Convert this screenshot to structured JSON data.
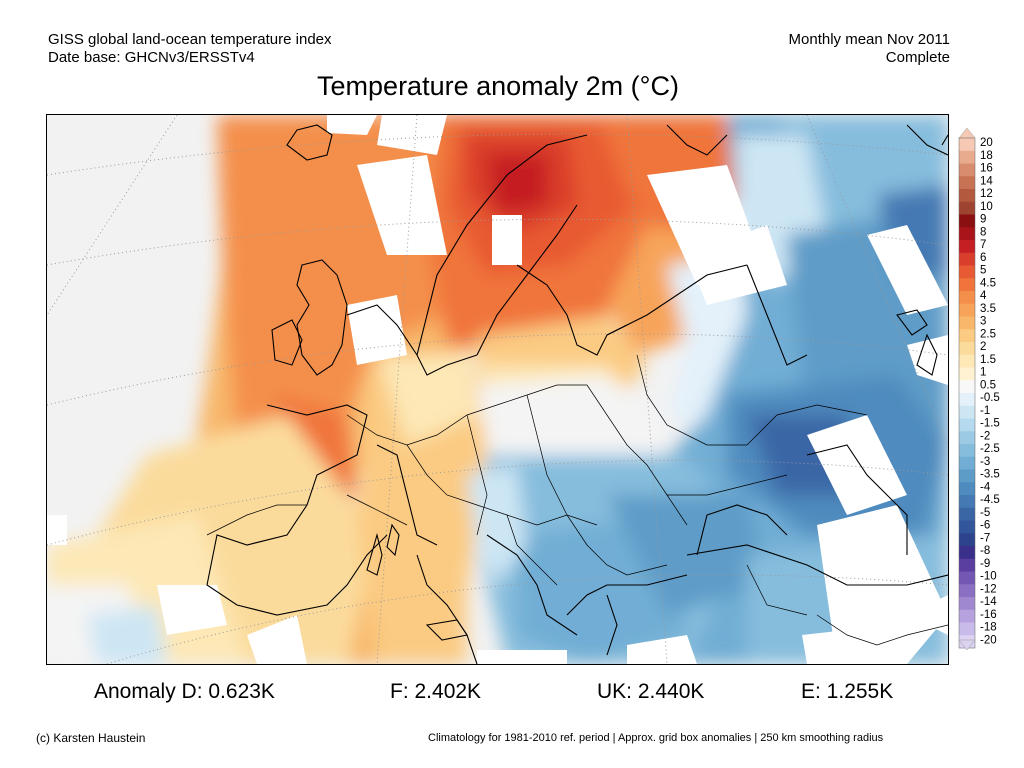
{
  "header": {
    "line1_left": "GISS global land-ocean temperature index",
    "line2_left": "Date base: GHCNv3/ERSSTv4",
    "line1_right": "Monthly mean Nov 2011",
    "line2_right": "Complete"
  },
  "title": "Temperature anomaly 2m (°C)",
  "map": {
    "region": "Europe",
    "no_data_color": "#ffffff",
    "background_color": "#f2f2f2",
    "coastline_color": "#000000"
  },
  "colorbar": {
    "labels": [
      "20",
      "18",
      "16",
      "14",
      "12",
      "10",
      "9",
      "8",
      "7",
      "6",
      "5",
      "4.5",
      "4",
      "3.5",
      "3",
      "2.5",
      "2",
      "1.5",
      "1",
      "0.5",
      "-0.5",
      "-1",
      "-1.5",
      "-2",
      "-2.5",
      "-3",
      "-3.5",
      "-4",
      "-4.5",
      "-5",
      "-6",
      "-7",
      "-8",
      "-9",
      "-10",
      "-12",
      "-14",
      "-16",
      "-18",
      "-20"
    ],
    "colors": [
      "#f5c9b4",
      "#e8ab8e",
      "#d88e6e",
      "#c77252",
      "#b35a3e",
      "#9e4330",
      "#8a0f10",
      "#a8141a",
      "#c51f23",
      "#d93d2b",
      "#e85a33",
      "#f0743b",
      "#f48f4b",
      "#f7a45a",
      "#f8b76a",
      "#fbcb83",
      "#fbdb9c",
      "#fde8b6",
      "#fff2d2",
      "#f8f8f8",
      "#e4f1fa",
      "#cde6f4",
      "#b5d9ee",
      "#9ccae5",
      "#86bddd",
      "#71add4",
      "#5e9cc8",
      "#4f8bbe",
      "#4479b3",
      "#3a66a6",
      "#33559a",
      "#2d448d",
      "#3a2f8a",
      "#5b3fa0",
      "#7357b2",
      "#8a6fc2",
      "#a088d0",
      "#b6a2de",
      "#c9bbe9",
      "#dcd3f3"
    ]
  },
  "stats": {
    "d": "Anomaly D: 0.623K",
    "f": "F: 2.402K",
    "uk": "UK: 2.440K",
    "e": "E: 1.255K"
  },
  "footer": {
    "left": "(c) Karsten Haustein",
    "right": "Climatology for 1981-2010 ref. period | Approx. grid box anomalies | 250 km smoothing radius"
  }
}
